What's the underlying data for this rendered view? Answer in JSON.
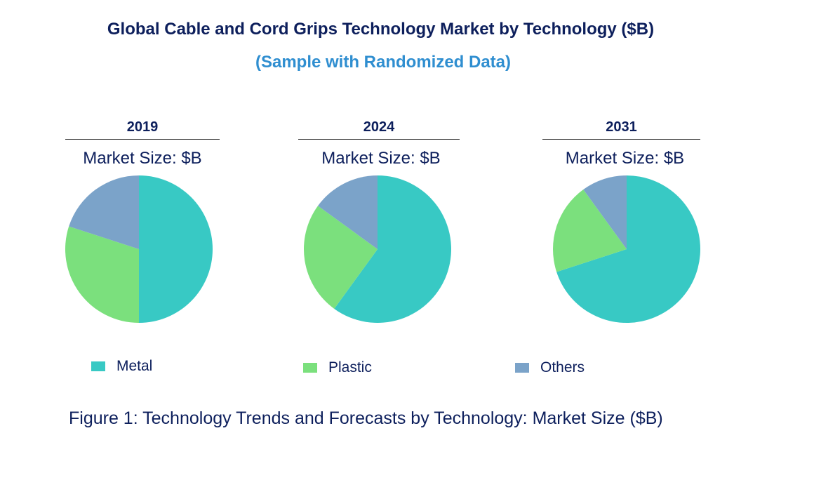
{
  "title": "Global Cable and Cord Grips Technology Market by Technology ($B)",
  "subtitle": "(Sample with Randomized Data)",
  "caption": "Figure 1: Technology Trends and Forecasts by Technology: Market Size ($B)",
  "colors": {
    "metal": "#38c9c4",
    "plastic": "#7be07d",
    "others": "#7ba3c9",
    "title": "#0d1f5c",
    "subtitle": "#2f8ed0"
  },
  "chart_data": [
    {
      "type": "pie",
      "year": "2019",
      "subtitle": "Market Size: $B",
      "categories": [
        "Metal",
        "Plastic",
        "Others"
      ],
      "values": [
        50,
        30,
        20
      ]
    },
    {
      "type": "pie",
      "year": "2024",
      "subtitle": "Market Size: $B",
      "categories": [
        "Metal",
        "Plastic",
        "Others"
      ],
      "values": [
        60,
        25,
        15
      ]
    },
    {
      "type": "pie",
      "year": "2031",
      "subtitle": "Market Size: $B",
      "categories": [
        "Metal",
        "Plastic",
        "Others"
      ],
      "values": [
        70,
        20,
        10
      ]
    }
  ],
  "legend": [
    {
      "label": "Metal",
      "color": "#38c9c4"
    },
    {
      "label": "Plastic",
      "color": "#7be07d"
    },
    {
      "label": "Others",
      "color": "#7ba3c9"
    }
  ]
}
